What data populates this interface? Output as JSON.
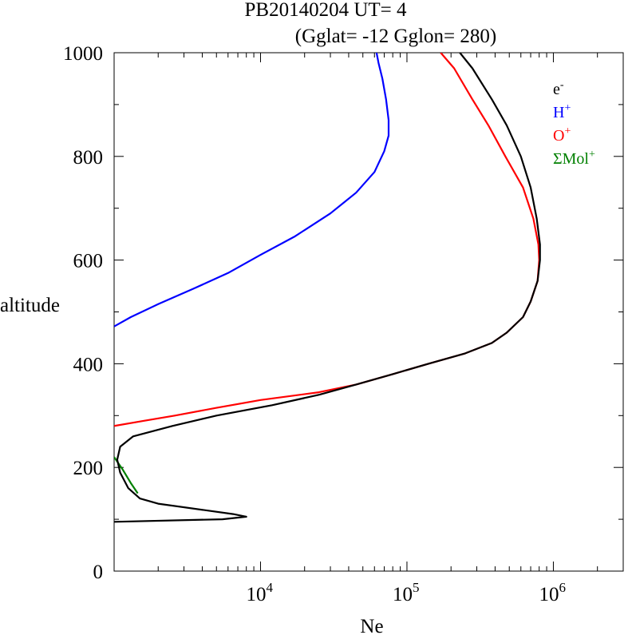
{
  "chart_data": {
    "type": "line",
    "title_line1": "PB20140204   UT=  4",
    "title_line2": "(Gglat= -12   Gglon=  280)",
    "xlabel": "Ne",
    "ylabel": "altitude",
    "x_scale": "log",
    "xlim": [
      1000,
      3000000
    ],
    "ylim": [
      0,
      1000
    ],
    "x_ticks": [
      {
        "value": 10000,
        "base": "10",
        "exp": "4"
      },
      {
        "value": 100000,
        "base": "10",
        "exp": "5"
      },
      {
        "value": 1000000,
        "base": "10",
        "exp": "6"
      }
    ],
    "y_ticks": [
      {
        "value": 0,
        "label": "0"
      },
      {
        "value": 200,
        "label": "200"
      },
      {
        "value": 400,
        "label": "400"
      },
      {
        "value": 600,
        "label": "600"
      },
      {
        "value": 800,
        "label": "800"
      },
      {
        "value": 1000,
        "label": "1000"
      }
    ],
    "legend_position": "top-right",
    "grid": false,
    "series": [
      {
        "name": "e-",
        "legend_base": "e",
        "legend_sup": "-",
        "color": "#000000",
        "points": [
          [
            1000,
            95
          ],
          [
            5500,
            100
          ],
          [
            8000,
            105
          ],
          [
            6500,
            110
          ],
          [
            2000,
            130
          ],
          [
            1500,
            140
          ],
          [
            1250,
            160
          ],
          [
            1100,
            190
          ],
          [
            1050,
            215
          ],
          [
            1100,
            240
          ],
          [
            1350,
            260
          ],
          [
            2500,
            280
          ],
          [
            5000,
            300
          ],
          [
            12000,
            320
          ],
          [
            25000,
            340
          ],
          [
            45000,
            360
          ],
          [
            80000,
            380
          ],
          [
            140000,
            400
          ],
          [
            250000,
            420
          ],
          [
            380000,
            440
          ],
          [
            480000,
            460
          ],
          [
            620000,
            490
          ],
          [
            700000,
            520
          ],
          [
            780000,
            560
          ],
          [
            810000,
            600
          ],
          [
            810000,
            630
          ],
          [
            770000,
            680
          ],
          [
            700000,
            740
          ],
          [
            600000,
            800
          ],
          [
            480000,
            860
          ],
          [
            380000,
            910
          ],
          [
            280000,
            970
          ],
          [
            230000,
            1000
          ]
        ]
      },
      {
        "name": "H+",
        "legend_base": "H",
        "legend_sup": "+",
        "color": "#0000ff",
        "points": [
          [
            1000,
            472
          ],
          [
            1300,
            490
          ],
          [
            2000,
            515
          ],
          [
            3500,
            545
          ],
          [
            6000,
            575
          ],
          [
            10000,
            610
          ],
          [
            17000,
            645
          ],
          [
            30000,
            690
          ],
          [
            45000,
            730
          ],
          [
            60000,
            770
          ],
          [
            70000,
            810
          ],
          [
            75000,
            840
          ],
          [
            75000,
            870
          ],
          [
            72000,
            910
          ],
          [
            68000,
            950
          ],
          [
            64000,
            980
          ],
          [
            62000,
            1000
          ]
        ]
      },
      {
        "name": "O+",
        "legend_base": "O",
        "legend_sup": "+",
        "color": "#ff0000",
        "points": [
          [
            1000,
            280
          ],
          [
            1600,
            290
          ],
          [
            2600,
            300
          ],
          [
            5000,
            315
          ],
          [
            10000,
            330
          ],
          [
            25000,
            345
          ],
          [
            45000,
            360
          ],
          [
            80000,
            380
          ],
          [
            140000,
            400
          ],
          [
            250000,
            420
          ],
          [
            380000,
            440
          ],
          [
            480000,
            460
          ],
          [
            620000,
            490
          ],
          [
            700000,
            520
          ],
          [
            780000,
            560
          ],
          [
            800000,
            600
          ],
          [
            790000,
            630
          ],
          [
            730000,
            680
          ],
          [
            620000,
            740
          ],
          [
            470000,
            800
          ],
          [
            360000,
            860
          ],
          [
            280000,
            910
          ],
          [
            210000,
            970
          ],
          [
            170000,
            1000
          ]
        ]
      },
      {
        "name": "ΣMol+",
        "legend_base": "ΣMol",
        "legend_sup": "+",
        "color": "#008000",
        "points": [
          [
            1000,
            220
          ],
          [
            1150,
            195
          ],
          [
            1300,
            170
          ],
          [
            1450,
            150
          ]
        ]
      }
    ]
  }
}
